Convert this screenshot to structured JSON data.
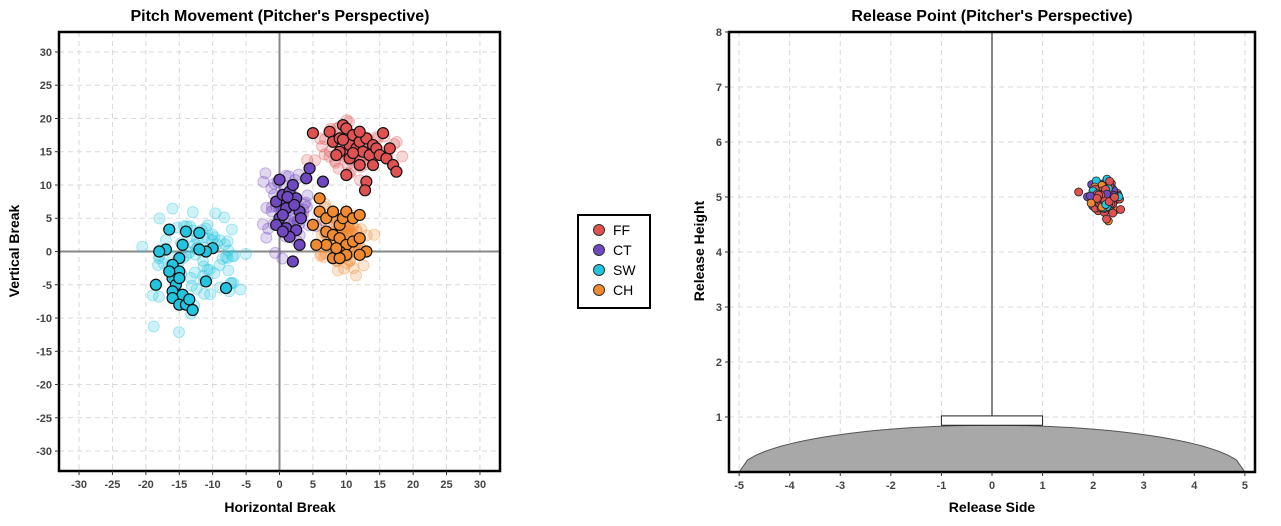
{
  "chart_data": [
    {
      "type": "scatter",
      "title": "Pitch Movement (Pitcher's Perspective)",
      "xlabel": "Horizontal Break",
      "ylabel": "Vertical Break",
      "xlim": [
        -33,
        33
      ],
      "ylim": [
        -33,
        33
      ],
      "xticks": [
        -30,
        -25,
        -20,
        -15,
        -10,
        -5,
        0,
        5,
        10,
        15,
        20,
        25,
        30
      ],
      "yticks": [
        -30,
        -25,
        -20,
        -15,
        -10,
        -5,
        0,
        5,
        10,
        15,
        20,
        25,
        30
      ],
      "grid": true,
      "series": [
        {
          "name": "FF",
          "color": "#e05252",
          "center": [
            11,
            15.5
          ],
          "spread": [
            2.6,
            1.9
          ],
          "highlight": [
            [
              5,
              17.8
            ],
            [
              7.5,
              18
            ],
            [
              8,
              16.5
            ],
            [
              9,
              17
            ],
            [
              9.5,
              19
            ],
            [
              10,
              18.5
            ],
            [
              10.5,
              16
            ],
            [
              11,
              17.5
            ],
            [
              11.5,
              15.5
            ],
            [
              12,
              16.5
            ],
            [
              12.5,
              15
            ],
            [
              13,
              17
            ],
            [
              13.5,
              14.5
            ],
            [
              14,
              16
            ],
            [
              14.5,
              15.5
            ],
            [
              15,
              14.5
            ],
            [
              15.5,
              17.8
            ],
            [
              16,
              14
            ],
            [
              16.5,
              15.5
            ],
            [
              17,
              13
            ],
            [
              17.5,
              12
            ],
            [
              12,
              13
            ],
            [
              10,
              11.5
            ],
            [
              13,
              10.5
            ],
            [
              12.8,
              9.2
            ],
            [
              9,
              15
            ],
            [
              10.5,
              14
            ],
            [
              8.5,
              14.5
            ],
            [
              11,
              14.8
            ],
            [
              14,
              13
            ],
            [
              9.5,
              16.8
            ],
            [
              12,
              18
            ]
          ]
        },
        {
          "name": "CT",
          "color": "#7048c0",
          "center": [
            1.5,
            7
          ],
          "spread": [
            1.8,
            2.6
          ],
          "highlight": [
            [
              0,
              10.8
            ],
            [
              -0.5,
              7.5
            ],
            [
              0.5,
              8.5
            ],
            [
              1,
              6.5
            ],
            [
              1.5,
              9
            ],
            [
              2,
              10
            ],
            [
              2.5,
              8
            ],
            [
              3,
              6
            ],
            [
              0,
              5
            ],
            [
              0.5,
              5.5
            ],
            [
              1,
              3.5
            ],
            [
              2.5,
              3.2
            ],
            [
              1.5,
              2.2
            ],
            [
              3,
              1
            ],
            [
              4,
              11
            ],
            [
              4.5,
              12.5
            ],
            [
              6.5,
              10.5
            ],
            [
              2,
              -1.5
            ],
            [
              -0.5,
              4
            ],
            [
              0.5,
              3
            ],
            [
              2.2,
              7
            ],
            [
              1.2,
              8.2
            ],
            [
              3.2,
              5
            ]
          ]
        },
        {
          "name": "SW",
          "color": "#22c5e0",
          "center": [
            -12,
            -1
          ],
          "spread": [
            3.6,
            3.6
          ],
          "highlight": [
            [
              -16.5,
              3.3
            ],
            [
              -14,
              3
            ],
            [
              -12,
              2.8
            ],
            [
              -10,
              0.5
            ],
            [
              -11,
              0
            ],
            [
              -12,
              0.3
            ],
            [
              -14.5,
              1
            ],
            [
              -17,
              0.3
            ],
            [
              -18,
              0
            ],
            [
              -15,
              -1
            ],
            [
              -16,
              -2
            ],
            [
              -15,
              -3
            ],
            [
              -16,
              -4
            ],
            [
              -18.5,
              -5
            ],
            [
              -15.5,
              -5
            ],
            [
              -16,
              -6
            ],
            [
              -14.5,
              -6.5
            ],
            [
              -16,
              -7
            ],
            [
              -15,
              -8
            ],
            [
              -14,
              -8
            ],
            [
              -13.5,
              -7.2
            ],
            [
              -13,
              -8.8
            ],
            [
              -11,
              -4.5
            ],
            [
              -8,
              -5.5
            ],
            [
              -15,
              -4
            ],
            [
              -16.5,
              -3
            ]
          ]
        },
        {
          "name": "CH",
          "color": "#f08a30",
          "center": [
            9,
            1.5
          ],
          "spread": [
            1.9,
            2.4
          ],
          "highlight": [
            [
              6,
              8
            ],
            [
              5,
              4
            ],
            [
              6,
              6
            ],
            [
              7,
              5
            ],
            [
              8,
              6
            ],
            [
              9,
              4
            ],
            [
              9.5,
              5
            ],
            [
              10,
              6
            ],
            [
              11,
              5
            ],
            [
              12,
              5.5
            ],
            [
              7,
              3
            ],
            [
              8,
              2.5
            ],
            [
              9,
              2
            ],
            [
              10,
              1
            ],
            [
              11,
              1.5
            ],
            [
              12,
              2
            ],
            [
              13,
              0
            ],
            [
              7,
              1
            ],
            [
              8,
              -1
            ],
            [
              9,
              0
            ],
            [
              10,
              -0.5
            ],
            [
              5.5,
              1
            ],
            [
              9,
              -1
            ],
            [
              12,
              -0.5
            ],
            [
              8.5,
              0.5
            ]
          ]
        }
      ]
    },
    {
      "type": "scatter",
      "title": "Release Point (Pitcher's Perspective)",
      "xlabel": "Release Side",
      "ylabel": "Release Height",
      "xlim": [
        -5.2,
        5.2
      ],
      "ylim": [
        0,
        8
      ],
      "xticks": [
        -5,
        -4,
        -3,
        -2,
        -1,
        0,
        1,
        2,
        3,
        4,
        5
      ],
      "yticks": [
        1,
        2,
        3,
        4,
        5,
        6,
        7,
        8
      ],
      "grid": true,
      "mound": {
        "rubber_x": [
          -1,
          1
        ],
        "rubber_y": [
          0.85,
          1.0
        ],
        "base_half_width": 5,
        "peak_height": 0.85
      },
      "cluster": {
        "center": [
          2.2,
          5.0
        ],
        "spread": [
          0.14,
          0.13
        ]
      }
    }
  ],
  "legend": {
    "items": [
      {
        "label": "FF",
        "color": "#e05252"
      },
      {
        "label": "CT",
        "color": "#7048c0"
      },
      {
        "label": "SW",
        "color": "#22c5e0"
      },
      {
        "label": "CH",
        "color": "#f08a30"
      }
    ]
  }
}
